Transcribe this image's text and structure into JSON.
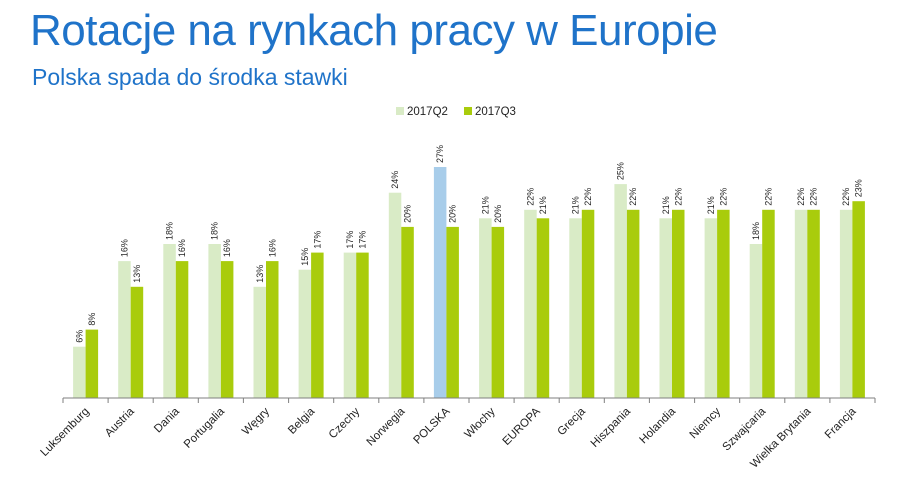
{
  "header": {
    "title": "Rotacje na rynkach pracy w Europie",
    "subtitle": "Polska spada do środka stawki"
  },
  "colors": {
    "q2": "#d9ebc6",
    "q3": "#a9cc0c",
    "highlight_q2": "#a8cdea",
    "axis": "#7f7f7f"
  },
  "chart_data": {
    "type": "bar",
    "categories": [
      "Luksemburg",
      "Austria",
      "Dania",
      "Portugalia",
      "Węgry",
      "Belgia",
      "Czechy",
      "Norwegia",
      "POLSKA",
      "Włochy",
      "EUROPA",
      "Grecja",
      "Hiszpania",
      "Holandia",
      "Niemcy",
      "Szwajcaria",
      "Wielka Brytania",
      "Francja"
    ],
    "series": [
      {
        "name": "2017Q2",
        "values": [
          6,
          16,
          18,
          18,
          13,
          15,
          17,
          24,
          27,
          21,
          22,
          21,
          25,
          21,
          21,
          18,
          22,
          22
        ],
        "labels": [
          "6%",
          "16%",
          "18%",
          "18%",
          "13%",
          "15%",
          "17%",
          "24%",
          "27%",
          "21%",
          "22%",
          "21%",
          "25%",
          "21%",
          "21%",
          "18%",
          "22%",
          "22%"
        ]
      },
      {
        "name": "2017Q3",
        "values": [
          8,
          13,
          16,
          16,
          16,
          17,
          17,
          20,
          20,
          20,
          21,
          22,
          22,
          22,
          22,
          22,
          22,
          23
        ],
        "labels": [
          "8%",
          "13%",
          "16%",
          "16%",
          "16%",
          "17%",
          "17%",
          "20%",
          "20%",
          "20%",
          "21%",
          "22%",
          "22%",
          "22%",
          "22%",
          "22%",
          "22%",
          "23%"
        ]
      }
    ],
    "highlight_category": "POLSKA",
    "ylim": [
      0,
      27
    ],
    "grid": false,
    "legend_position": "top-center"
  }
}
